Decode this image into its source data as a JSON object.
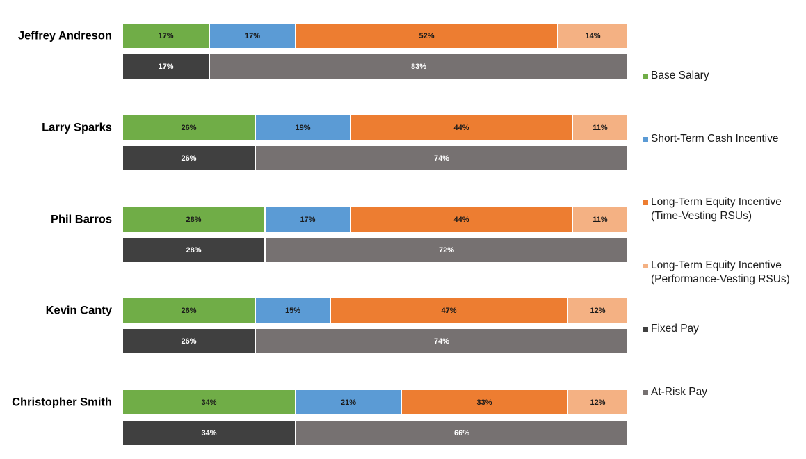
{
  "chart_data": {
    "type": "bar",
    "orientation": "horizontal",
    "stacked": true,
    "normalized": true,
    "grid": false,
    "legend_position": "right",
    "people": [
      {
        "name": "Jeffrey Andreson",
        "components": [
          17,
          17,
          52,
          14
        ],
        "component_labels": [
          "17%",
          "17%",
          "52%",
          "14%"
        ],
        "mix": [
          17,
          83
        ],
        "mix_labels": [
          "17%",
          "83%"
        ]
      },
      {
        "name": "Larry Sparks",
        "components": [
          26,
          19,
          44,
          11
        ],
        "component_labels": [
          "26%",
          "19%",
          "44%",
          "11%"
        ],
        "mix": [
          26,
          74
        ],
        "mix_labels": [
          "26%",
          "74%"
        ]
      },
      {
        "name": "Phil Barros",
        "components": [
          28,
          17,
          44,
          11
        ],
        "component_labels": [
          "28%",
          "17%",
          "44%",
          "11%"
        ],
        "mix": [
          28,
          72
        ],
        "mix_labels": [
          "28%",
          "72%"
        ]
      },
      {
        "name": "Kevin Canty",
        "components": [
          26,
          15,
          47,
          12
        ],
        "component_labels": [
          "26%",
          "15%",
          "47%",
          "12%"
        ],
        "mix": [
          26,
          74
        ],
        "mix_labels": [
          "26%",
          "74%"
        ]
      },
      {
        "name": "Christopher Smith",
        "components": [
          34,
          21,
          33,
          12
        ],
        "component_labels": [
          "34%",
          "21%",
          "33%",
          "12%"
        ],
        "mix": [
          34,
          66
        ],
        "mix_labels": [
          "34%",
          "66%"
        ]
      }
    ],
    "component_series": [
      {
        "name": "Base Salary",
        "color": "#70ad47",
        "text_color": "#1a1a1a"
      },
      {
        "name": "Short-Term Cash Incentive",
        "color": "#5b9bd5",
        "text_color": "#1a1a1a"
      },
      {
        "name": "Long-Term Equity Incentive (Time-Vesting RSUs)",
        "color": "#ed7d31",
        "text_color": "#1a1a1a"
      },
      {
        "name": "Long-Term Equity Incentive (Performance-Vesting RSUs)",
        "color": "#f4b183",
        "text_color": "#1a1a1a"
      }
    ],
    "mix_series": [
      {
        "name": "Fixed Pay",
        "color": "#404040",
        "text_color": "#ffffff"
      },
      {
        "name": "At-Risk Pay",
        "color": "#767171",
        "text_color": "#ffffff"
      }
    ],
    "legend": [
      {
        "label": "Base Salary",
        "color": "#70ad47"
      },
      {
        "label": "Short-Term Cash Incentive",
        "color": "#5b9bd5"
      },
      {
        "label": "Long-Term Equity Incentive (Time-Vesting RSUs)",
        "color": "#ed7d31"
      },
      {
        "label": "Long-Term Equity Incentive (Performance-Vesting RSUs)",
        "color": "#f4b183"
      },
      {
        "label": "Fixed Pay",
        "color": "#404040"
      },
      {
        "label": "At-Risk Pay",
        "color": "#767171"
      }
    ]
  }
}
